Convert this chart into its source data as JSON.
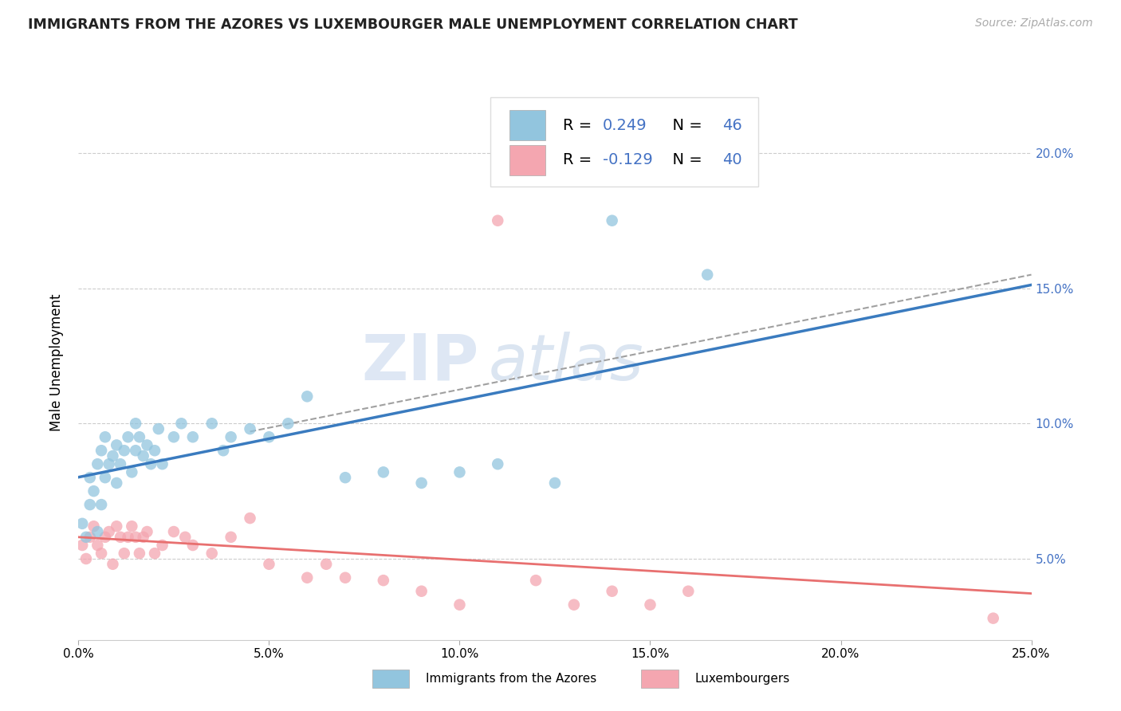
{
  "title": "IMMIGRANTS FROM THE AZORES VS LUXEMBOURGER MALE UNEMPLOYMENT CORRELATION CHART",
  "source_text": "Source: ZipAtlas.com",
  "ylabel": "Male Unemployment",
  "xlabel_ticks": [
    "0.0%",
    "5.0%",
    "10.0%",
    "15.0%",
    "20.0%",
    "25.0%"
  ],
  "xlabel_vals": [
    0.0,
    0.05,
    0.1,
    0.15,
    0.2,
    0.25
  ],
  "ylabel_ticks": [
    "5.0%",
    "10.0%",
    "15.0%",
    "20.0%"
  ],
  "ylabel_vals": [
    0.05,
    0.1,
    0.15,
    0.2
  ],
  "xmin": 0.0,
  "xmax": 0.25,
  "ymin": 0.02,
  "ymax": 0.225,
  "legend1_label": "Immigrants from the Azores",
  "legend2_label": "Luxembourgers",
  "R1": "0.249",
  "N1": "46",
  "R2": "-0.129",
  "N2": "40",
  "blue_color": "#92c5de",
  "pink_color": "#f4a6b0",
  "line_blue": "#3a7bbf",
  "line_pink": "#e87070",
  "trendline_gray": "#a0a0a0",
  "watermark_zip": "ZIP",
  "watermark_atlas": "atlas",
  "blue_scatter_x": [
    0.001,
    0.002,
    0.003,
    0.003,
    0.004,
    0.005,
    0.005,
    0.006,
    0.006,
    0.007,
    0.007,
    0.008,
    0.009,
    0.01,
    0.01,
    0.011,
    0.012,
    0.013,
    0.014,
    0.015,
    0.015,
    0.016,
    0.017,
    0.018,
    0.019,
    0.02,
    0.021,
    0.022,
    0.025,
    0.027,
    0.03,
    0.035,
    0.038,
    0.04,
    0.045,
    0.05,
    0.055,
    0.06,
    0.07,
    0.08,
    0.09,
    0.1,
    0.11,
    0.125,
    0.14,
    0.165
  ],
  "blue_scatter_y": [
    0.063,
    0.058,
    0.07,
    0.08,
    0.075,
    0.06,
    0.085,
    0.07,
    0.09,
    0.08,
    0.095,
    0.085,
    0.088,
    0.078,
    0.092,
    0.085,
    0.09,
    0.095,
    0.082,
    0.09,
    0.1,
    0.095,
    0.088,
    0.092,
    0.085,
    0.09,
    0.098,
    0.085,
    0.095,
    0.1,
    0.095,
    0.1,
    0.09,
    0.095,
    0.098,
    0.095,
    0.1,
    0.11,
    0.08,
    0.082,
    0.078,
    0.082,
    0.085,
    0.078,
    0.175,
    0.155
  ],
  "pink_scatter_x": [
    0.001,
    0.002,
    0.003,
    0.004,
    0.005,
    0.006,
    0.007,
    0.008,
    0.009,
    0.01,
    0.011,
    0.012,
    0.013,
    0.014,
    0.015,
    0.016,
    0.017,
    0.018,
    0.02,
    0.022,
    0.025,
    0.028,
    0.03,
    0.035,
    0.04,
    0.045,
    0.05,
    0.06,
    0.065,
    0.07,
    0.08,
    0.09,
    0.1,
    0.11,
    0.12,
    0.13,
    0.14,
    0.15,
    0.16,
    0.24
  ],
  "pink_scatter_y": [
    0.055,
    0.05,
    0.058,
    0.062,
    0.055,
    0.052,
    0.058,
    0.06,
    0.048,
    0.062,
    0.058,
    0.052,
    0.058,
    0.062,
    0.058,
    0.052,
    0.058,
    0.06,
    0.052,
    0.055,
    0.06,
    0.058,
    0.055,
    0.052,
    0.058,
    0.065,
    0.048,
    0.043,
    0.048,
    0.043,
    0.042,
    0.038,
    0.033,
    0.175,
    0.042,
    0.033,
    0.038,
    0.033,
    0.038,
    0.028
  ]
}
